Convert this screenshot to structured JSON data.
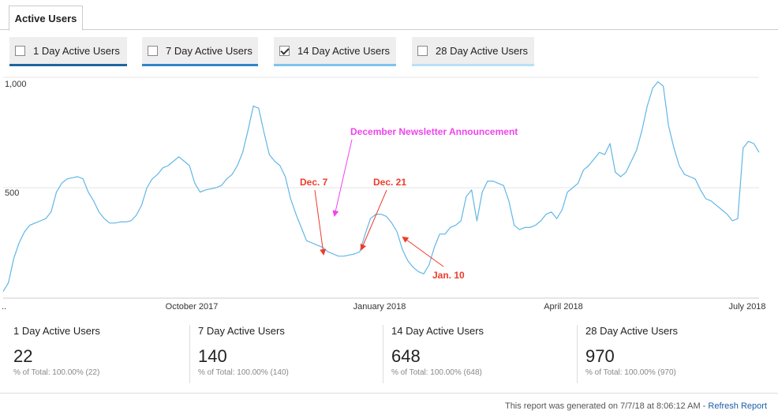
{
  "tab": {
    "label": "Active Users"
  },
  "toggles": [
    {
      "label": "1 Day Active Users",
      "checked": false,
      "color": "#1f65a0"
    },
    {
      "label": "7 Day Active Users",
      "checked": false,
      "color": "#2f86c8"
    },
    {
      "label": "14 Day Active Users",
      "checked": true,
      "color": "#7ec4ee"
    },
    {
      "label": "28 Day Active Users",
      "checked": false,
      "color": "#b9e0f7"
    }
  ],
  "chart_data": {
    "type": "line",
    "ylim": [
      0,
      1000
    ],
    "y_ticks": [
      "1,000",
      "500"
    ],
    "x_ticks": [
      "October 2017",
      "January 2018",
      "April 2018",
      "July 2018"
    ],
    "x_start_label": "..",
    "series": [
      {
        "name": "14 Day Active Users",
        "color": "#62b6e6",
        "values": [
          30,
          70,
          180,
          250,
          300,
          330,
          340,
          350,
          360,
          390,
          480,
          520,
          540,
          545,
          550,
          540,
          480,
          440,
          390,
          360,
          340,
          340,
          345,
          345,
          350,
          375,
          420,
          500,
          540,
          560,
          590,
          600,
          620,
          640,
          620,
          600,
          520,
          480,
          490,
          495,
          500,
          510,
          540,
          560,
          600,
          660,
          760,
          870,
          860,
          750,
          650,
          620,
          600,
          550,
          450,
          380,
          320,
          260,
          250,
          240,
          230,
          210,
          200,
          190,
          190,
          195,
          200,
          210,
          290,
          360,
          380,
          380,
          370,
          340,
          300,
          220,
          170,
          140,
          120,
          110,
          150,
          230,
          290,
          290,
          320,
          330,
          350,
          460,
          490,
          350,
          480,
          530,
          530,
          520,
          510,
          440,
          330,
          310,
          320,
          320,
          330,
          350,
          380,
          390,
          360,
          400,
          480,
          500,
          520,
          580,
          600,
          630,
          660,
          650,
          700,
          570,
          550,
          570,
          620,
          670,
          760,
          870,
          950,
          980,
          960,
          780,
          680,
          600,
          560,
          550,
          540,
          490,
          450,
          440,
          420,
          400,
          380,
          350,
          360,
          680,
          710,
          700,
          660
        ]
      }
    ],
    "annotations": [
      {
        "text": "December Newsletter Announcement",
        "color": "#ee44ee"
      },
      {
        "text": "Dec. 7",
        "color": "#ee3b2b"
      },
      {
        "text": "Dec. 21",
        "color": "#ee3b2b"
      },
      {
        "text": "Jan. 10",
        "color": "#ee3b2b"
      }
    ],
    "grid": true
  },
  "summary": [
    {
      "label": "1 Day Active Users",
      "value": "22",
      "total": "% of Total: 100.00% (22)"
    },
    {
      "label": "7 Day Active Users",
      "value": "140",
      "total": "% of Total: 100.00% (140)"
    },
    {
      "label": "14 Day Active Users",
      "value": "648",
      "total": "% of Total: 100.00% (648)"
    },
    {
      "label": "28 Day Active Users",
      "value": "970",
      "total": "% of Total: 100.00% (970)"
    }
  ],
  "footer": {
    "text": "This report was generated on 7/7/18 at 8:06:12 AM - ",
    "link": "Refresh Report"
  }
}
